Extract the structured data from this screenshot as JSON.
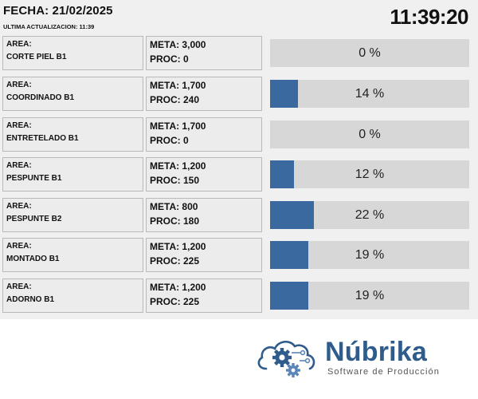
{
  "header": {
    "fecha": "FECHA: 21/02/2025",
    "ultima": "ULTIMA ACTUALIZACION: 11:39",
    "clock": "11:39:20"
  },
  "rows": [
    {
      "area_label": "AREA:",
      "area_name": "CORTE PIEL B1",
      "meta": "META: 3,000",
      "proc": "PROC: 0",
      "progress": 0,
      "percent_text": "0 %"
    },
    {
      "area_label": "AREA:",
      "area_name": "COORDINADO B1",
      "meta": "META: 1,700",
      "proc": "PROC: 240",
      "progress": 14,
      "percent_text": "14 %"
    },
    {
      "area_label": "AREA:",
      "area_name": "ENTRETELADO B1",
      "meta": "META: 1,700",
      "proc": "PROC: 0",
      "progress": 0,
      "percent_text": "0 %"
    },
    {
      "area_label": "AREA:",
      "area_name": "PESPUNTE B1",
      "meta": "META: 1,200",
      "proc": "PROC: 150",
      "progress": 12,
      "percent_text": "12 %"
    },
    {
      "area_label": "AREA:",
      "area_name": "PESPUNTE B2",
      "meta": "META: 800",
      "proc": "PROC: 180",
      "progress": 22,
      "percent_text": "22 %"
    },
    {
      "area_label": "AREA:",
      "area_name": "MONTADO B1",
      "meta": "META: 1,200",
      "proc": "PROC: 225",
      "progress": 19,
      "percent_text": "19 %"
    },
    {
      "area_label": "AREA:",
      "area_name": "ADORNO B1",
      "meta": "META: 1,200",
      "proc": "PROC: 225",
      "progress": 19,
      "percent_text": "19 %"
    }
  ],
  "colors": {
    "bar_fill": "#3a69a0",
    "bar_track": "#d7d7d7",
    "brand": "#2f5c8a"
  },
  "logo": {
    "icon": "cloud-gears-icon",
    "brand": "Núbrika",
    "tagline": "Software de Producción"
  }
}
